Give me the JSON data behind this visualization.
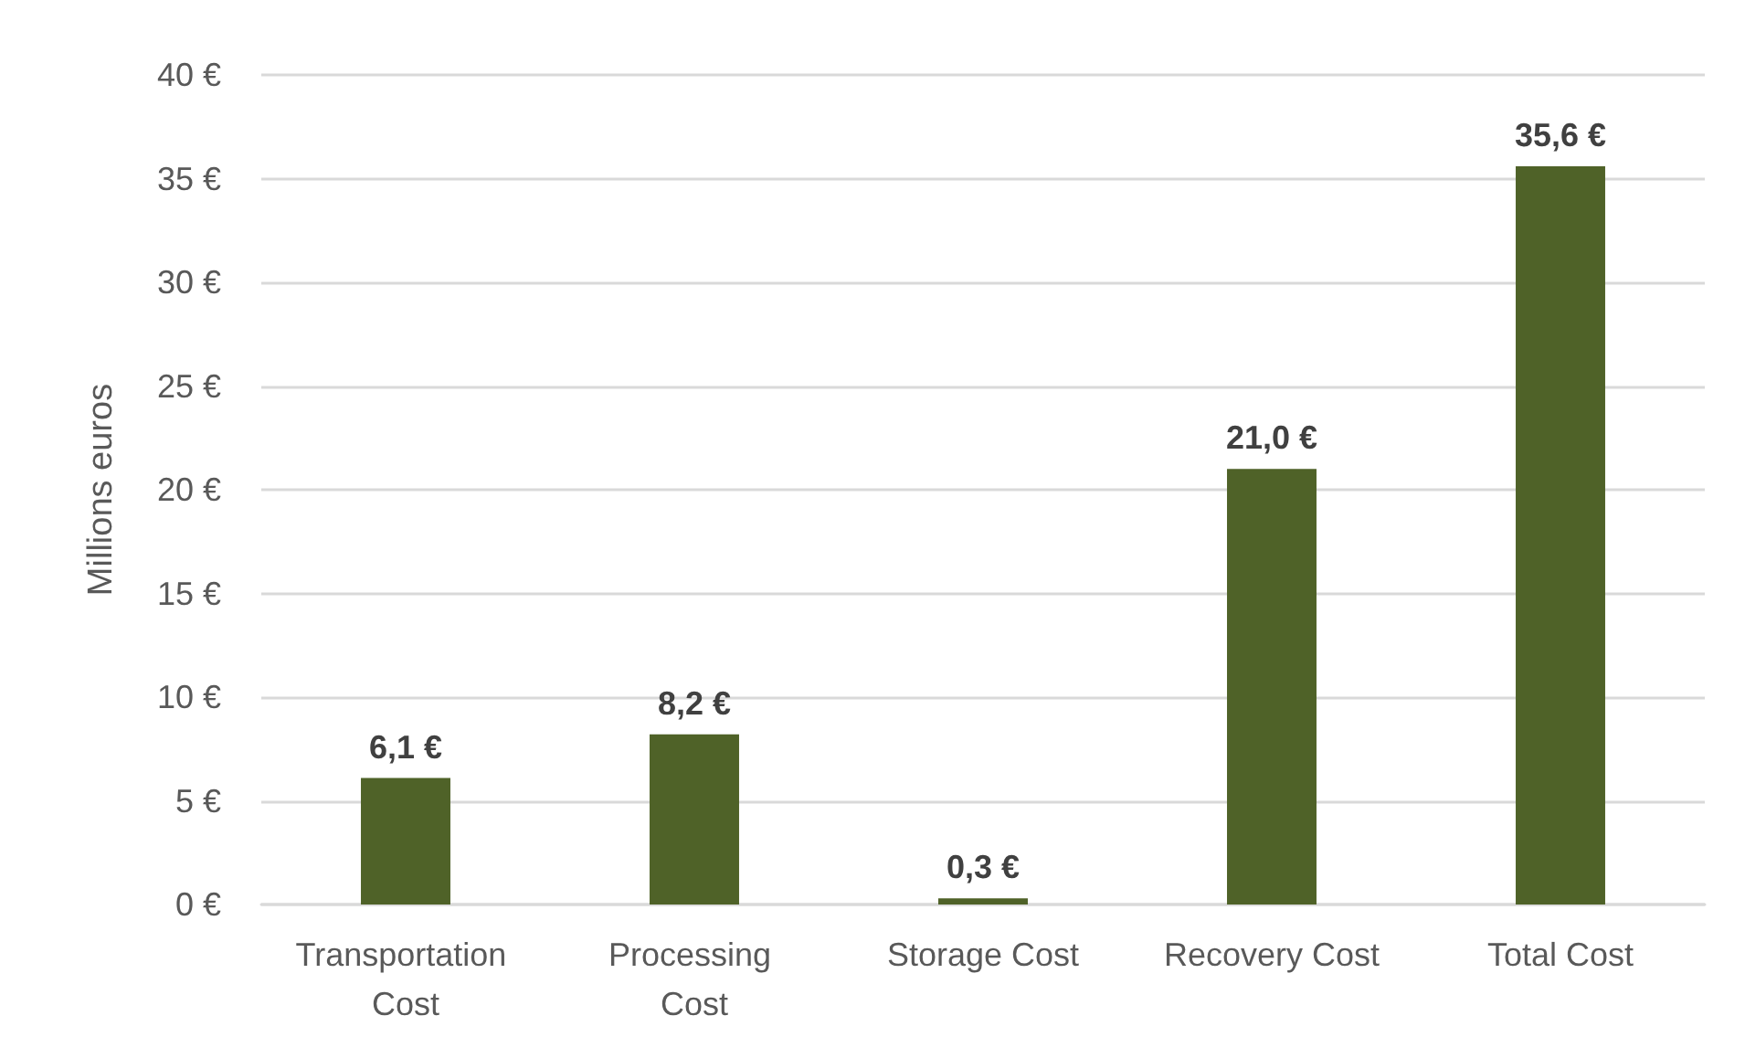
{
  "chart_data": {
    "type": "bar",
    "ylabel": "Millions euros",
    "categories": [
      "Transportation Cost",
      "Processing Cost",
      "Storage Cost",
      "Recovery Cost",
      "Total Cost"
    ],
    "values": [
      6.1,
      8.2,
      0.3,
      21.0,
      35.6
    ],
    "value_labels": [
      "6,1 €",
      "8,2 €",
      "0,3 €",
      "21,0 €",
      "35,6 €"
    ],
    "color": "#4f6228",
    "ylim": [
      0,
      40
    ],
    "yticks": [
      {
        "value": 0,
        "label": "0 €"
      },
      {
        "value": 5,
        "label": "5 €"
      },
      {
        "value": 10,
        "label": "10 €"
      },
      {
        "value": 15,
        "label": "15 €"
      },
      {
        "value": 20,
        "label": "20 €"
      },
      {
        "value": 25,
        "label": "25 €"
      },
      {
        "value": 30,
        "label": "30 €"
      },
      {
        "value": 35,
        "label": "35 €"
      },
      {
        "value": 40,
        "label": "40 €"
      }
    ],
    "grid": "y"
  }
}
